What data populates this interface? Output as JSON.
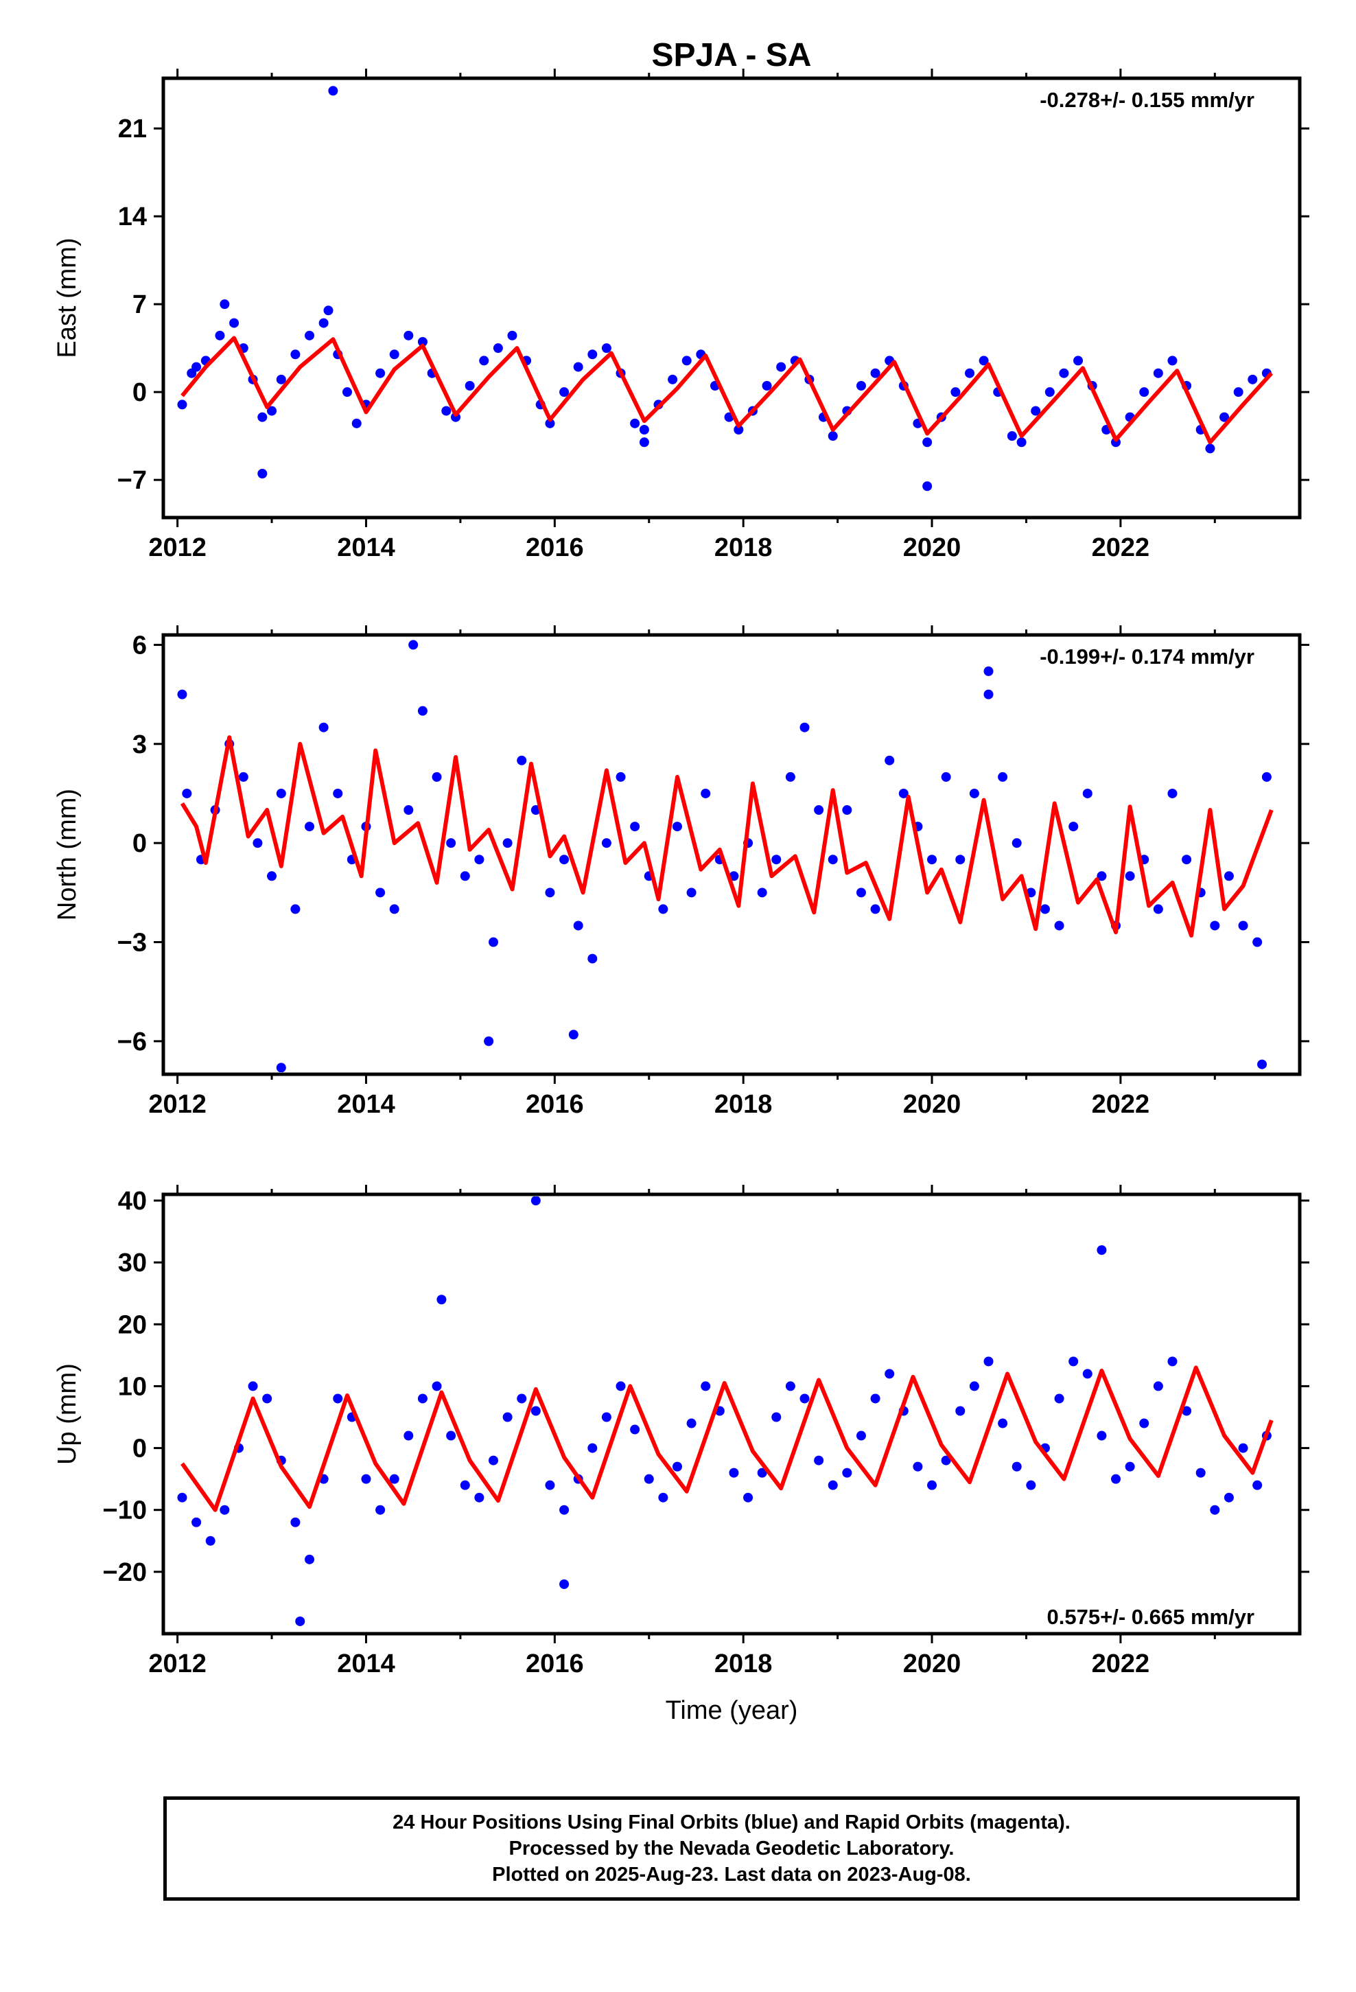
{
  "title": "SPJA - SA",
  "footer": {
    "line1": "24 Hour Positions Using Final Orbits (blue) and Rapid Orbits (magenta).",
    "line2": "Processed by the Nevada Geodetic Laboratory.",
    "line3": "Plotted on 2025-Aug-23. Last data on 2023-Aug-08."
  },
  "colors": {
    "points": "#0000ff",
    "model": "#ff0000",
    "frame": "#000000"
  },
  "chart_data": [
    {
      "type": "scatter",
      "component": "east",
      "ylabel": "East (mm)",
      "xlabel": "",
      "rate_label": "-0.278+/- 0.155 mm/yr",
      "rate_position": "top-right",
      "xlim": [
        2011.85,
        2023.9
      ],
      "ylim": [
        -10,
        25
      ],
      "xticks": [
        2012,
        2014,
        2016,
        2018,
        2020,
        2022
      ],
      "yticks": [
        -7,
        0,
        7,
        14,
        21
      ],
      "series": [
        {
          "style": "points",
          "x": [
            2012.05,
            2012.15,
            2012.3,
            2012.45,
            2012.6,
            2012.7,
            2012.8,
            2012.9,
            2013.0,
            2013.1,
            2013.25,
            2013.4,
            2013.55,
            2013.7,
            2013.8,
            2013.9,
            2014.0,
            2014.15,
            2014.3,
            2014.45,
            2014.6,
            2014.7,
            2014.85,
            2014.95,
            2015.1,
            2015.25,
            2015.4,
            2015.55,
            2015.7,
            2015.85,
            2015.95,
            2016.1,
            2016.25,
            2016.4,
            2016.55,
            2016.7,
            2016.85,
            2016.95,
            2017.1,
            2017.25,
            2017.4,
            2017.55,
            2017.7,
            2017.85,
            2017.95,
            2018.1,
            2018.25,
            2018.4,
            2018.55,
            2018.7,
            2018.85,
            2018.95,
            2019.1,
            2019.25,
            2019.4,
            2019.55,
            2019.7,
            2019.85,
            2019.95,
            2020.1,
            2020.25,
            2020.4,
            2020.55,
            2020.7,
            2020.85,
            2020.95,
            2021.1,
            2021.25,
            2021.4,
            2021.55,
            2021.7,
            2021.85,
            2021.95,
            2022.1,
            2022.25,
            2022.4,
            2022.55,
            2022.7,
            2022.85,
            2022.95,
            2023.1,
            2023.25,
            2023.4,
            2023.55,
            2012.2,
            2012.5,
            2013.6,
            2016.95,
            2019.95,
            2012.9,
            2013.65
          ],
          "y": [
            -1.0,
            1.5,
            2.5,
            4.5,
            5.5,
            3.5,
            1.0,
            -2.0,
            -1.5,
            1.0,
            3.0,
            4.5,
            5.5,
            3.0,
            0.0,
            -2.5,
            -1.0,
            1.5,
            3.0,
            4.5,
            4.0,
            1.5,
            -1.5,
            -2.0,
            0.5,
            2.5,
            3.5,
            4.5,
            2.5,
            -1.0,
            -2.5,
            0.0,
            2.0,
            3.0,
            3.5,
            1.5,
            -2.5,
            -3.0,
            -1.0,
            1.0,
            2.5,
            3.0,
            0.5,
            -2.0,
            -3.0,
            -1.5,
            0.5,
            2.0,
            2.5,
            1.0,
            -2.0,
            -3.5,
            -1.5,
            0.5,
            1.5,
            2.5,
            0.5,
            -2.5,
            -4.0,
            -2.0,
            0.0,
            1.5,
            2.5,
            0.0,
            -3.5,
            -4.0,
            -1.5,
            0.0,
            1.5,
            2.5,
            0.5,
            -3.0,
            -4.0,
            -2.0,
            0.0,
            1.5,
            2.5,
            0.5,
            -3.0,
            -4.5,
            -2.0,
            0.0,
            1.0,
            1.5,
            2.0,
            7.0,
            6.5,
            -4.0,
            -7.5,
            -6.5,
            24.0
          ]
        },
        {
          "style": "line",
          "x": [
            2012.05,
            2012.3,
            2012.6,
            2012.95,
            2013.3,
            2013.65,
            2014.0,
            2014.3,
            2014.6,
            2014.95,
            2015.3,
            2015.6,
            2015.95,
            2016.3,
            2016.6,
            2016.95,
            2017.3,
            2017.6,
            2017.95,
            2018.3,
            2018.6,
            2018.95,
            2019.3,
            2019.6,
            2019.95,
            2020.3,
            2020.6,
            2020.95,
            2021.3,
            2021.6,
            2021.95,
            2022.3,
            2022.6,
            2022.95,
            2023.3,
            2023.6
          ],
          "y": [
            -0.3,
            2.0,
            4.3,
            -1.2,
            2.0,
            4.2,
            -1.6,
            1.8,
            3.7,
            -1.8,
            1.2,
            3.5,
            -2.2,
            1.0,
            3.1,
            -2.3,
            0.3,
            2.9,
            -2.7,
            0.1,
            2.6,
            -3.0,
            -0.1,
            2.4,
            -3.3,
            -0.4,
            2.2,
            -3.5,
            -0.6,
            1.9,
            -3.8,
            -0.8,
            1.7,
            -4.0,
            -1.0,
            1.5
          ]
        }
      ]
    },
    {
      "type": "scatter",
      "component": "north",
      "ylabel": "North (mm)",
      "xlabel": "",
      "rate_label": "-0.199+/- 0.174 mm/yr",
      "rate_position": "top-right",
      "xlim": [
        2011.85,
        2023.9
      ],
      "ylim": [
        -7,
        6.3
      ],
      "xticks": [
        2012,
        2014,
        2016,
        2018,
        2020,
        2022
      ],
      "yticks": [
        -6,
        -3,
        0,
        3,
        6
      ],
      "series": [
        {
          "style": "points",
          "x": [
            2012.05,
            2012.1,
            2012.25,
            2012.4,
            2012.55,
            2012.7,
            2012.85,
            2013.0,
            2013.1,
            2013.25,
            2013.4,
            2013.55,
            2013.7,
            2013.85,
            2014.0,
            2014.15,
            2014.3,
            2014.45,
            2014.6,
            2014.75,
            2014.9,
            2015.05,
            2015.2,
            2015.35,
            2015.5,
            2015.65,
            2015.8,
            2015.95,
            2016.1,
            2016.25,
            2016.4,
            2016.55,
            2016.7,
            2016.85,
            2017.0,
            2017.15,
            2017.3,
            2017.45,
            2017.6,
            2017.75,
            2017.9,
            2018.05,
            2018.2,
            2018.35,
            2018.5,
            2018.65,
            2018.8,
            2018.95,
            2019.1,
            2019.25,
            2019.4,
            2019.55,
            2019.7,
            2019.85,
            2020.0,
            2020.15,
            2020.3,
            2020.45,
            2020.6,
            2020.75,
            2020.9,
            2021.05,
            2021.2,
            2021.35,
            2021.5,
            2021.65,
            2021.8,
            2021.95,
            2022.1,
            2022.25,
            2022.4,
            2022.55,
            2022.7,
            2022.85,
            2023.0,
            2023.15,
            2023.3,
            2023.45,
            2023.55,
            2013.1,
            2014.5,
            2015.3,
            2016.2,
            2020.6,
            2023.5
          ],
          "y": [
            4.5,
            1.5,
            -0.5,
            1.0,
            3.0,
            2.0,
            0.0,
            -1.0,
            1.5,
            -2.0,
            0.5,
            3.5,
            1.5,
            -0.5,
            0.5,
            -1.5,
            -2.0,
            1.0,
            4.0,
            2.0,
            0.0,
            -1.0,
            -0.5,
            -3.0,
            0.0,
            2.5,
            1.0,
            -1.5,
            -0.5,
            -2.5,
            -3.5,
            0.0,
            2.0,
            0.5,
            -1.0,
            -2.0,
            0.5,
            -1.5,
            1.5,
            -0.5,
            -1.0,
            0.0,
            -1.5,
            -0.5,
            2.0,
            3.5,
            1.0,
            -0.5,
            1.0,
            -1.5,
            -2.0,
            2.5,
            1.5,
            0.5,
            -0.5,
            2.0,
            -0.5,
            1.5,
            4.5,
            2.0,
            0.0,
            -1.5,
            -2.0,
            -2.5,
            0.5,
            1.5,
            -1.0,
            -2.5,
            -1.0,
            -0.5,
            -2.0,
            1.5,
            -0.5,
            -1.5,
            -2.5,
            -1.0,
            -2.5,
            -3.0,
            2.0,
            -6.8,
            6.0,
            -6.0,
            -5.8,
            5.2,
            -6.7
          ]
        },
        {
          "style": "line",
          "x": [
            2012.05,
            2012.2,
            2012.3,
            2012.55,
            2012.75,
            2012.95,
            2013.1,
            2013.3,
            2013.55,
            2013.75,
            2013.95,
            2014.1,
            2014.3,
            2014.55,
            2014.75,
            2014.95,
            2015.1,
            2015.3,
            2015.55,
            2015.75,
            2015.95,
            2016.1,
            2016.3,
            2016.55,
            2016.75,
            2016.95,
            2017.1,
            2017.3,
            2017.55,
            2017.75,
            2017.95,
            2018.1,
            2018.3,
            2018.55,
            2018.75,
            2018.95,
            2019.1,
            2019.3,
            2019.55,
            2019.75,
            2019.95,
            2020.1,
            2020.3,
            2020.55,
            2020.75,
            2020.95,
            2021.1,
            2021.3,
            2021.55,
            2021.75,
            2021.95,
            2022.1,
            2022.3,
            2022.55,
            2022.75,
            2022.95,
            2023.1,
            2023.3,
            2023.6
          ],
          "y": [
            1.2,
            0.5,
            -0.6,
            3.2,
            0.2,
            1.0,
            -0.7,
            3.0,
            0.3,
            0.8,
            -1.0,
            2.8,
            0.0,
            0.6,
            -1.2,
            2.6,
            -0.2,
            0.4,
            -1.4,
            2.4,
            -0.4,
            0.2,
            -1.5,
            2.2,
            -0.6,
            0.0,
            -1.7,
            2.0,
            -0.8,
            -0.2,
            -1.9,
            1.8,
            -1.0,
            -0.4,
            -2.1,
            1.6,
            -0.9,
            -0.6,
            -2.3,
            1.4,
            -1.5,
            -0.8,
            -2.4,
            1.3,
            -1.7,
            -1.0,
            -2.6,
            1.2,
            -1.8,
            -1.1,
            -2.7,
            1.1,
            -1.9,
            -1.2,
            -2.8,
            1.0,
            -2.0,
            -1.3,
            1.0
          ]
        }
      ]
    },
    {
      "type": "scatter",
      "component": "up",
      "ylabel": "Up (mm)",
      "xlabel": "Time (year)",
      "rate_label": "0.575+/- 0.665 mm/yr",
      "rate_position": "bottom-right",
      "xlim": [
        2011.85,
        2023.9
      ],
      "ylim": [
        -30,
        41
      ],
      "xticks": [
        2012,
        2014,
        2016,
        2018,
        2020,
        2022
      ],
      "yticks": [
        -20,
        -10,
        0,
        10,
        20,
        30,
        40
      ],
      "series": [
        {
          "style": "points",
          "x": [
            2012.05,
            2012.2,
            2012.35,
            2012.5,
            2012.65,
            2012.8,
            2012.95,
            2013.1,
            2013.25,
            2013.4,
            2013.55,
            2013.7,
            2013.85,
            2014.0,
            2014.15,
            2014.3,
            2014.45,
            2014.6,
            2014.75,
            2014.9,
            2015.05,
            2015.2,
            2015.35,
            2015.5,
            2015.65,
            2015.8,
            2015.95,
            2016.1,
            2016.25,
            2016.4,
            2016.55,
            2016.7,
            2016.85,
            2017.0,
            2017.15,
            2017.3,
            2017.45,
            2017.6,
            2017.75,
            2017.9,
            2018.05,
            2018.2,
            2018.35,
            2018.5,
            2018.65,
            2018.8,
            2018.95,
            2019.1,
            2019.25,
            2019.4,
            2019.55,
            2019.7,
            2019.85,
            2020.0,
            2020.15,
            2020.3,
            2020.45,
            2020.6,
            2020.75,
            2020.9,
            2021.05,
            2021.2,
            2021.35,
            2021.5,
            2021.65,
            2021.8,
            2021.95,
            2022.1,
            2022.25,
            2022.4,
            2022.55,
            2022.7,
            2022.85,
            2023.0,
            2023.15,
            2023.3,
            2023.45,
            2023.55,
            2013.3,
            2015.8,
            2021.8,
            2016.1,
            2014.8
          ],
          "y": [
            -8,
            -12,
            -15,
            -10,
            0,
            10,
            8,
            -2,
            -12,
            -18,
            -5,
            8,
            5,
            -5,
            -10,
            -5,
            2,
            8,
            10,
            2,
            -6,
            -8,
            -2,
            5,
            8,
            6,
            -6,
            -10,
            -5,
            0,
            5,
            10,
            3,
            -5,
            -8,
            -3,
            4,
            10,
            6,
            -4,
            -8,
            -4,
            5,
            10,
            8,
            -2,
            -6,
            -4,
            2,
            8,
            12,
            6,
            -3,
            -6,
            -2,
            6,
            10,
            14,
            4,
            -3,
            -6,
            0,
            8,
            14,
            12,
            2,
            -5,
            -3,
            4,
            10,
            14,
            6,
            -4,
            -10,
            -8,
            0,
            -6,
            2,
            -28,
            40,
            32,
            -22,
            24
          ]
        },
        {
          "style": "line",
          "x": [
            2012.05,
            2012.4,
            2012.8,
            2013.1,
            2013.4,
            2013.8,
            2014.1,
            2014.4,
            2014.8,
            2015.1,
            2015.4,
            2015.8,
            2016.1,
            2016.4,
            2016.8,
            2017.1,
            2017.4,
            2017.8,
            2018.1,
            2018.4,
            2018.8,
            2019.1,
            2019.4,
            2019.8,
            2020.1,
            2020.4,
            2020.8,
            2021.1,
            2021.4,
            2021.8,
            2022.1,
            2022.4,
            2022.8,
            2023.1,
            2023.4,
            2023.6
          ],
          "y": [
            -2.5,
            -10.0,
            8.0,
            -3.0,
            -9.5,
            8.5,
            -2.5,
            -9.0,
            9.0,
            -2.0,
            -8.5,
            9.5,
            -1.5,
            -8.0,
            10.0,
            -1.0,
            -7.0,
            10.5,
            -0.5,
            -6.5,
            11.0,
            0.0,
            -6.0,
            11.5,
            0.5,
            -5.5,
            12.0,
            1.0,
            -5.0,
            12.5,
            1.5,
            -4.5,
            13.0,
            2.0,
            -4.0,
            4.5
          ]
        }
      ]
    }
  ]
}
